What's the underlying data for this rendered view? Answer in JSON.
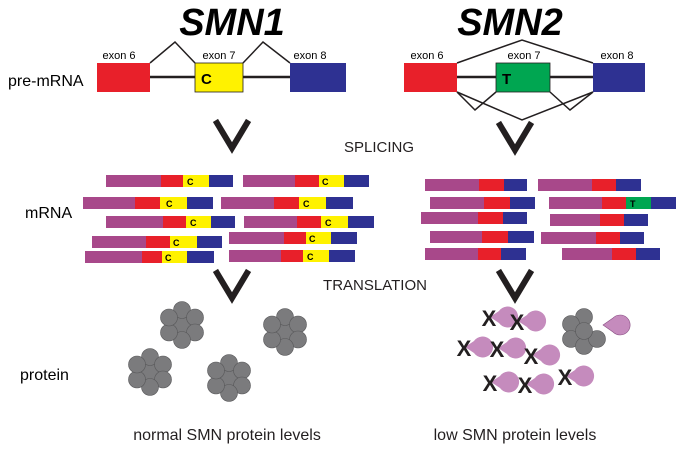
{
  "genes": {
    "smn1": {
      "title": "SMN1",
      "exons": {
        "e6": "exon 6",
        "e7": "exon 7",
        "e8": "exon 8"
      },
      "exon7_base": "C",
      "outcome": "normal SMN protein levels"
    },
    "smn2": {
      "title": "SMN2",
      "exons": {
        "e6": "exon 6",
        "e7": "exon 7",
        "e8": "exon 8"
      },
      "exon7_base": "T",
      "outcome": "low SMN protein levels"
    }
  },
  "row_labels": {
    "premrna": "pre-mRNA",
    "mrna": "mRNA",
    "protein": "protein"
  },
  "steps": {
    "splicing": "SPLICING",
    "translation": "TRANSLATION"
  },
  "mrna_letters": {
    "c": "C",
    "t": "T"
  },
  "defect_mark": "X",
  "colors": {
    "exon6": "#e8202a",
    "exon7_smn1": "#fff200",
    "exon7_smn2": "#00a651",
    "exon8": "#2e3192",
    "upstream": "#a8488a",
    "protein": "#7b7b7d",
    "bite": "#c58bbd",
    "line": "#231f20"
  }
}
